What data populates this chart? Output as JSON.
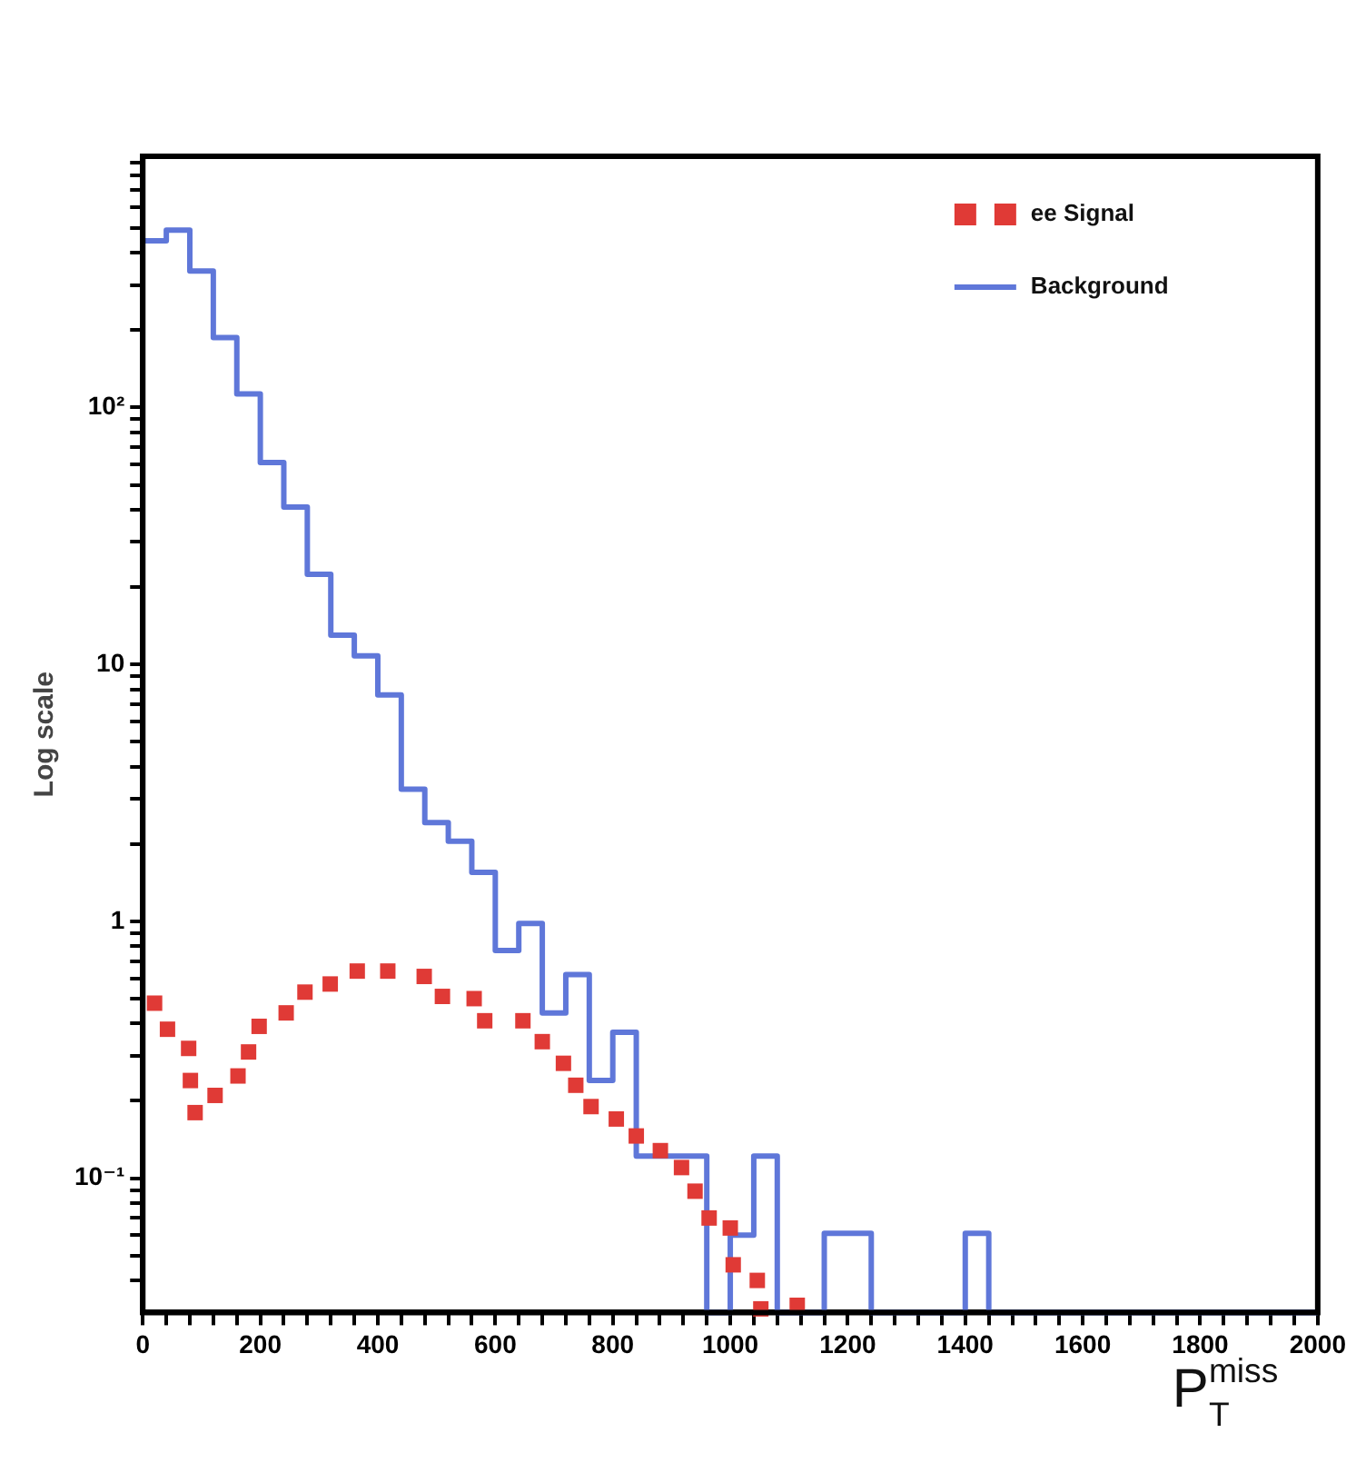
{
  "chart_data": {
    "type": "histogram",
    "xlabel": "P$_{T}$$^{miss}$",
    "ylabel": "Log scale",
    "log": "y",
    "grid": false,
    "legend": "top right",
    "xlim": [
      0,
      2000
    ],
    "ylim": [
      0.03,
      950
    ],
    "xticks": [
      0,
      {
        "value": 40,
        "label": null
      },
      {
        "value": 80,
        "label": null
      },
      {
        "value": 120,
        "label": null
      },
      {
        "value": 160,
        "label": null
      },
      200,
      {
        "value": 240,
        "label": null
      },
      {
        "value": 280,
        "label": null
      },
      {
        "value": 320,
        "label": null
      },
      {
        "value": 360,
        "label": null
      },
      400,
      {
        "value": 440,
        "label": null
      },
      {
        "value": 480,
        "label": null
      },
      {
        "value": 520,
        "label": null
      },
      {
        "value": 560,
        "label": null
      },
      600,
      {
        "value": 640,
        "label": null
      },
      {
        "value": 680,
        "label": null
      },
      {
        "value": 720,
        "label": null
      },
      {
        "value": 760,
        "label": null
      },
      800,
      {
        "value": 840,
        "label": null
      },
      {
        "value": 880,
        "label": null
      },
      {
        "value": 920,
        "label": null
      },
      {
        "value": 960,
        "label": null
      },
      1000,
      {
        "value": 1040,
        "label": null
      },
      {
        "value": 1080,
        "label": null
      },
      {
        "value": 1120,
        "label": null
      },
      {
        "value": 1160,
        "label": null
      },
      1200,
      {
        "value": 1240,
        "label": null
      },
      {
        "value": 1280,
        "label": null
      },
      {
        "value": 1320,
        "label": null
      },
      {
        "value": 1360,
        "label": null
      },
      1400,
      {
        "value": 1440,
        "label": null
      },
      {
        "value": 1480,
        "label": null
      },
      {
        "value": 1520,
        "label": null
      },
      {
        "value": 1560,
        "label": null
      },
      1600,
      {
        "value": 1640,
        "label": null
      },
      {
        "value": 1680,
        "label": null
      },
      {
        "value": 1720,
        "label": null
      },
      {
        "value": 1760,
        "label": null
      },
      1800,
      {
        "value": 1840,
        "label": null
      },
      {
        "value": 1880,
        "label": null
      },
      {
        "value": 1920,
        "label": null
      },
      {
        "value": 1960,
        "label": null
      },
      2000
    ],
    "yticks": [
      {
        "value": 0.04,
        "label": null
      },
      {
        "value": 0.05,
        "label": null
      },
      {
        "value": 0.06,
        "label": null
      },
      {
        "value": 0.07,
        "label": null
      },
      {
        "value": 0.08,
        "label": null
      },
      {
        "value": 0.09,
        "label": null
      },
      {
        "value": 0.1,
        "label": "10⁻¹"
      },
      {
        "value": 0.2,
        "label": null
      },
      {
        "value": 0.3,
        "label": null
      },
      {
        "value": 0.4,
        "label": null
      },
      {
        "value": 0.5,
        "label": null
      },
      {
        "value": 0.6,
        "label": null
      },
      {
        "value": 0.7,
        "label": null
      },
      {
        "value": 0.8,
        "label": null
      },
      {
        "value": 0.9,
        "label": null
      },
      1,
      {
        "value": 2,
        "label": null
      },
      {
        "value": 3,
        "label": null
      },
      {
        "value": 4,
        "label": null
      },
      {
        "value": 5,
        "label": null
      },
      {
        "value": 6,
        "label": null
      },
      {
        "value": 7,
        "label": null
      },
      {
        "value": 8,
        "label": null
      },
      {
        "value": 9,
        "label": null
      },
      10,
      {
        "value": 20,
        "label": null
      },
      {
        "value": 30,
        "label": null
      },
      {
        "value": 40,
        "label": null
      },
      {
        "value": 50,
        "label": null
      },
      {
        "value": 60,
        "label": null
      },
      {
        "value": 70,
        "label": null
      },
      {
        "value": 80,
        "label": null
      },
      {
        "value": 90,
        "label": null
      },
      {
        "value": 100,
        "label": "10²"
      },
      {
        "value": 200,
        "label": null
      },
      {
        "value": 300,
        "label": null
      },
      {
        "value": 400,
        "label": null
      },
      {
        "value": 500,
        "label": null
      },
      {
        "value": 600,
        "label": null
      },
      {
        "value": 700,
        "label": null
      },
      {
        "value": 800,
        "label": null
      },
      {
        "value": 900,
        "label": null
      }
    ],
    "series": [
      {
        "name": "ee Signal",
        "type": "scatter",
        "marker": "square",
        "color": "#e03a36",
        "x": [
          20,
          42,
          78,
          81,
          89,
          123,
          162,
          180,
          198,
          244,
          276,
          319,
          365,
          417,
          479,
          510,
          564,
          582,
          647,
          680,
          716,
          737,
          763,
          806,
          840,
          881,
          917,
          940,
          964,
          1000,
          1005,
          1046,
          1052,
          1114
        ],
        "values": [
          0.48,
          0.38,
          0.32,
          0.24,
          0.18,
          0.21,
          0.25,
          0.31,
          0.39,
          0.44,
          0.53,
          0.57,
          0.64,
          0.64,
          0.61,
          0.51,
          0.5,
          0.41,
          0.41,
          0.34,
          0.28,
          0.23,
          0.19,
          0.17,
          0.146,
          0.128,
          0.11,
          0.089,
          0.07,
          0.064,
          0.046,
          0.04,
          0.031,
          0.032
        ]
      },
      {
        "name": "Background",
        "color": "#5f77d9",
        "bins": [
          0,
          40,
          80,
          120,
          160,
          200,
          240,
          280,
          320,
          360,
          400,
          440,
          480,
          520,
          560,
          600,
          640,
          680,
          720,
          760,
          800,
          840,
          880,
          920,
          960,
          1000,
          1040,
          1080,
          1120,
          1160,
          1200,
          1240,
          1280,
          1320,
          1360,
          1400,
          1440,
          1480,
          1520,
          1560,
          1600,
          1640,
          1680,
          1720,
          1760,
          1800,
          1840,
          1880,
          1920,
          1960,
          2000
        ],
        "values": [
          445,
          490,
          340,
          187,
          113,
          61,
          41,
          22.4,
          13,
          10.8,
          7.6,
          3.27,
          2.42,
          2.05,
          1.55,
          0.77,
          0.98,
          0.44,
          0.62,
          0.24,
          0.37,
          0.122,
          0.122,
          0.122,
          null,
          0.06,
          0.122,
          null,
          null,
          0.061,
          0.061,
          null,
          null,
          null,
          null,
          0.061,
          null,
          null,
          null,
          null,
          null,
          null,
          null,
          null,
          null,
          null,
          null,
          null,
          null,
          null
        ]
      }
    ]
  }
}
